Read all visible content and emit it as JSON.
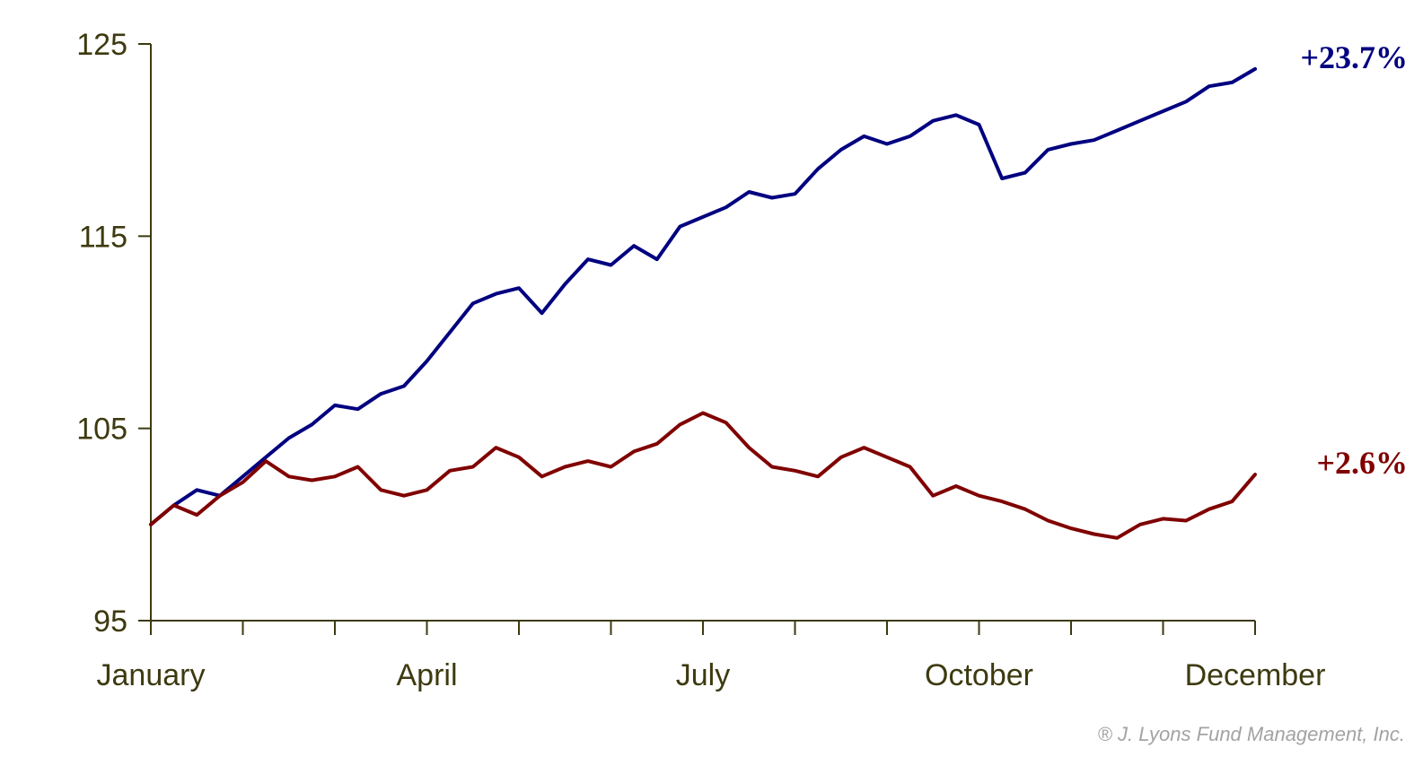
{
  "chart_data": {
    "type": "line",
    "title": "",
    "xlabel": "",
    "ylabel": "",
    "ylim": [
      95,
      125
    ],
    "yticks": [
      95,
      105,
      115,
      125
    ],
    "x_tick_count": 13,
    "x_labels": [
      {
        "label": "January",
        "tick": 0
      },
      {
        "label": "April",
        "tick": 3
      },
      {
        "label": "July",
        "tick": 6
      },
      {
        "label": "October",
        "tick": 9
      },
      {
        "label": "December",
        "tick": 12
      }
    ],
    "grid": false,
    "series": [
      {
        "name": "",
        "color": "#000080",
        "end_label": "+23.7%",
        "x": [
          0,
          0.25,
          0.5,
          0.75,
          1.0,
          1.25,
          1.5,
          1.75,
          2.0,
          2.25,
          2.5,
          2.75,
          3.0,
          3.25,
          3.5,
          3.75,
          4.0,
          4.25,
          4.5,
          4.75,
          5.0,
          5.25,
          5.5,
          5.75,
          6.0,
          6.25,
          6.5,
          6.75,
          7.0,
          7.25,
          7.5,
          7.75,
          8.0,
          8.25,
          8.5,
          8.75,
          9.0,
          9.25,
          9.5,
          9.75,
          10.0,
          10.25,
          10.5,
          10.75,
          11.0,
          11.25,
          11.5,
          11.75,
          12.0
        ],
        "y": [
          100.0,
          101.0,
          101.8,
          101.5,
          102.5,
          103.5,
          104.5,
          105.2,
          106.2,
          106.0,
          106.8,
          107.2,
          108.5,
          110.0,
          111.5,
          112.0,
          112.3,
          111.0,
          112.5,
          113.8,
          113.5,
          114.5,
          113.8,
          115.5,
          116.0,
          116.5,
          117.3,
          117.0,
          117.2,
          118.5,
          119.5,
          120.2,
          119.8,
          120.2,
          121.0,
          121.3,
          120.8,
          118.0,
          118.3,
          119.5,
          119.8,
          120.0,
          120.5,
          121.0,
          121.5,
          122.0,
          122.8,
          123.0,
          123.7
        ]
      },
      {
        "name": "",
        "color": "#800000",
        "end_label": "+2.6%",
        "x": [
          0,
          0.25,
          0.5,
          0.75,
          1.0,
          1.25,
          1.5,
          1.75,
          2.0,
          2.25,
          2.5,
          2.75,
          3.0,
          3.25,
          3.5,
          3.75,
          4.0,
          4.25,
          4.5,
          4.75,
          5.0,
          5.25,
          5.5,
          5.75,
          6.0,
          6.25,
          6.5,
          6.75,
          7.0,
          7.25,
          7.5,
          7.75,
          8.0,
          8.25,
          8.5,
          8.75,
          9.0,
          9.25,
          9.5,
          9.75,
          10.0,
          10.25,
          10.5,
          10.75,
          11.0,
          11.25,
          11.5,
          11.75,
          12.0
        ],
        "y": [
          100.0,
          101.0,
          100.5,
          101.5,
          102.2,
          103.3,
          102.5,
          102.3,
          102.5,
          103.0,
          101.8,
          101.5,
          101.8,
          102.8,
          103.0,
          104.0,
          103.5,
          102.5,
          103.0,
          103.3,
          103.0,
          103.8,
          104.2,
          105.2,
          105.8,
          105.3,
          104.0,
          103.0,
          102.8,
          102.5,
          103.5,
          104.0,
          103.5,
          103.0,
          101.5,
          102.0,
          101.5,
          101.2,
          100.8,
          100.2,
          99.8,
          99.5,
          99.3,
          100.0,
          100.3,
          100.2,
          100.8,
          101.2,
          102.6
        ]
      }
    ]
  },
  "copyright": "® J. Lyons Fund Management, Inc."
}
